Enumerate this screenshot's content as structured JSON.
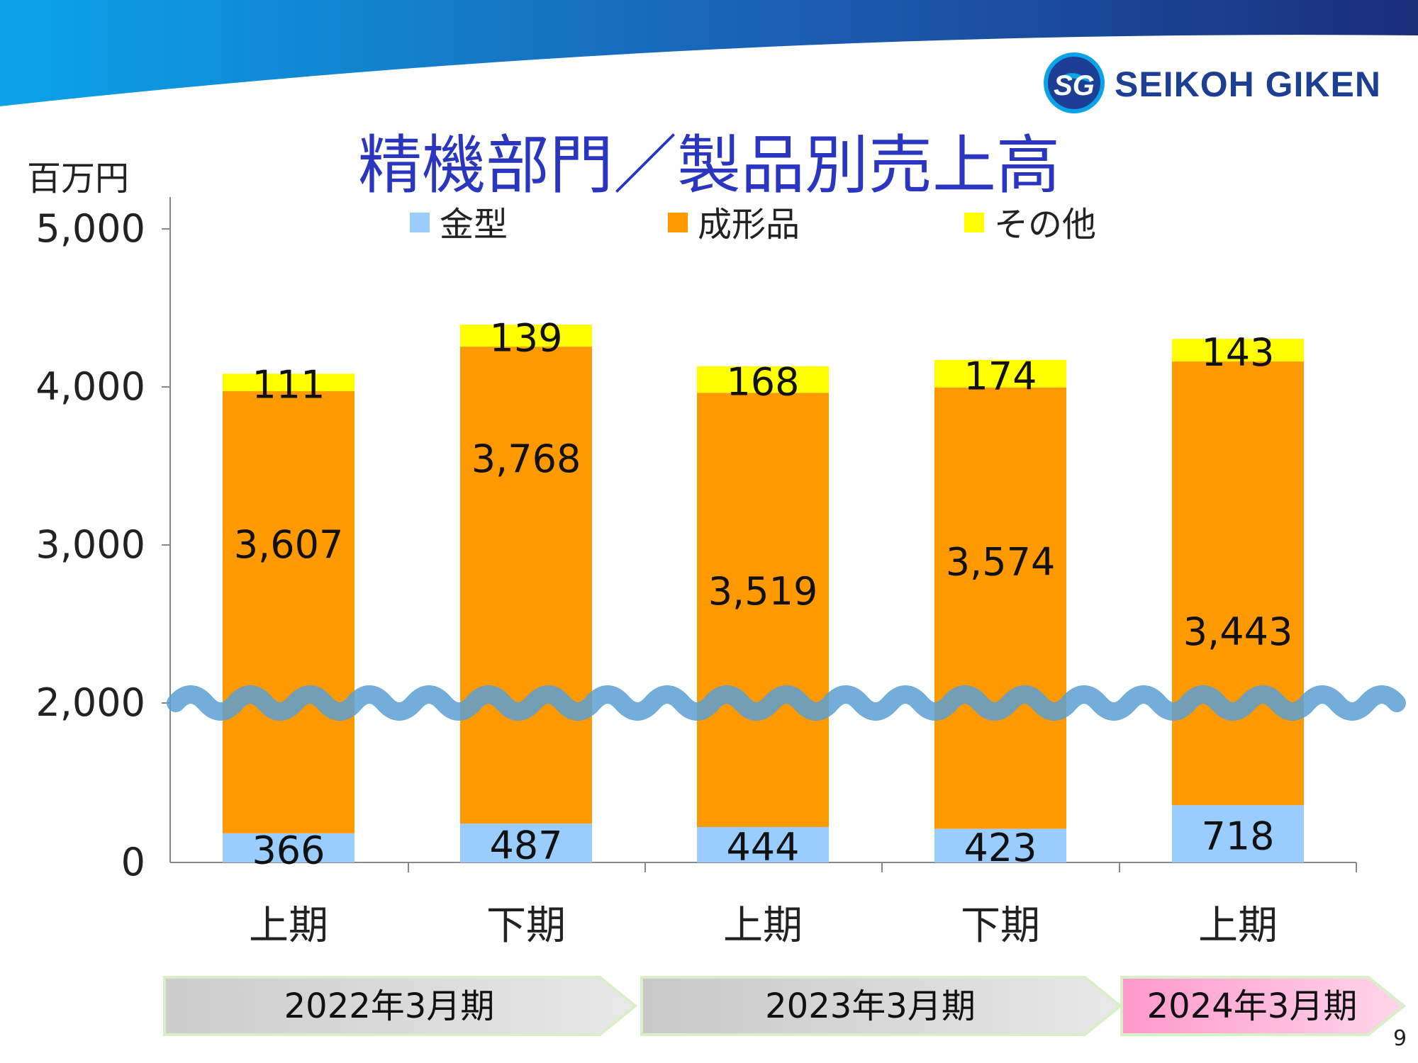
{
  "slide": {
    "title": "精機部門／製品別売上高",
    "unit": "百万円",
    "page_number": "9",
    "logo_text": "SEIKOH GIKEN",
    "logo_mark": "SG"
  },
  "colors": {
    "kanagata": "#99ccff",
    "seikeihin": "#ff9900",
    "other": "#ffff00",
    "title": "#2b36c0",
    "wave": "#5b9fd4",
    "header_start": "#0aa3e8",
    "header_end": "#1a2e7a",
    "year_grey": "#d0d0d0",
    "year_pink": "#ff99cc"
  },
  "chart_data": {
    "type": "bar",
    "stacked": true,
    "axis_break": "wavy break line at 2,000",
    "categories": [
      "上期",
      "下期",
      "上期",
      "下期",
      "上期"
    ],
    "category_groups": [
      {
        "label": "2022年3月期",
        "categories": [
          0,
          1
        ]
      },
      {
        "label": "2023年3月期",
        "categories": [
          2,
          3
        ]
      },
      {
        "label": "2024年3月期",
        "categories": [
          4
        ]
      }
    ],
    "series": [
      {
        "name": "金型",
        "values": [
          366,
          487,
          444,
          423,
          718
        ]
      },
      {
        "name": "成形品",
        "values": [
          3607,
          3768,
          3519,
          3574,
          3443
        ]
      },
      {
        "name": "その他",
        "values": [
          111,
          139,
          168,
          174,
          143
        ]
      }
    ],
    "value_labels": {
      "金型": [
        "366",
        "487",
        "444",
        "423",
        "718"
      ],
      "成形品": [
        "3,607",
        "3,768",
        "3,519",
        "3,574",
        "3,443"
      ],
      "その他": [
        "111",
        "139",
        "168",
        "174",
        "143"
      ]
    },
    "y_ticks": [
      "0",
      "2,000",
      "3,000",
      "4,000",
      "5,000"
    ],
    "ylabel": "百万円",
    "legend_position": "top"
  }
}
